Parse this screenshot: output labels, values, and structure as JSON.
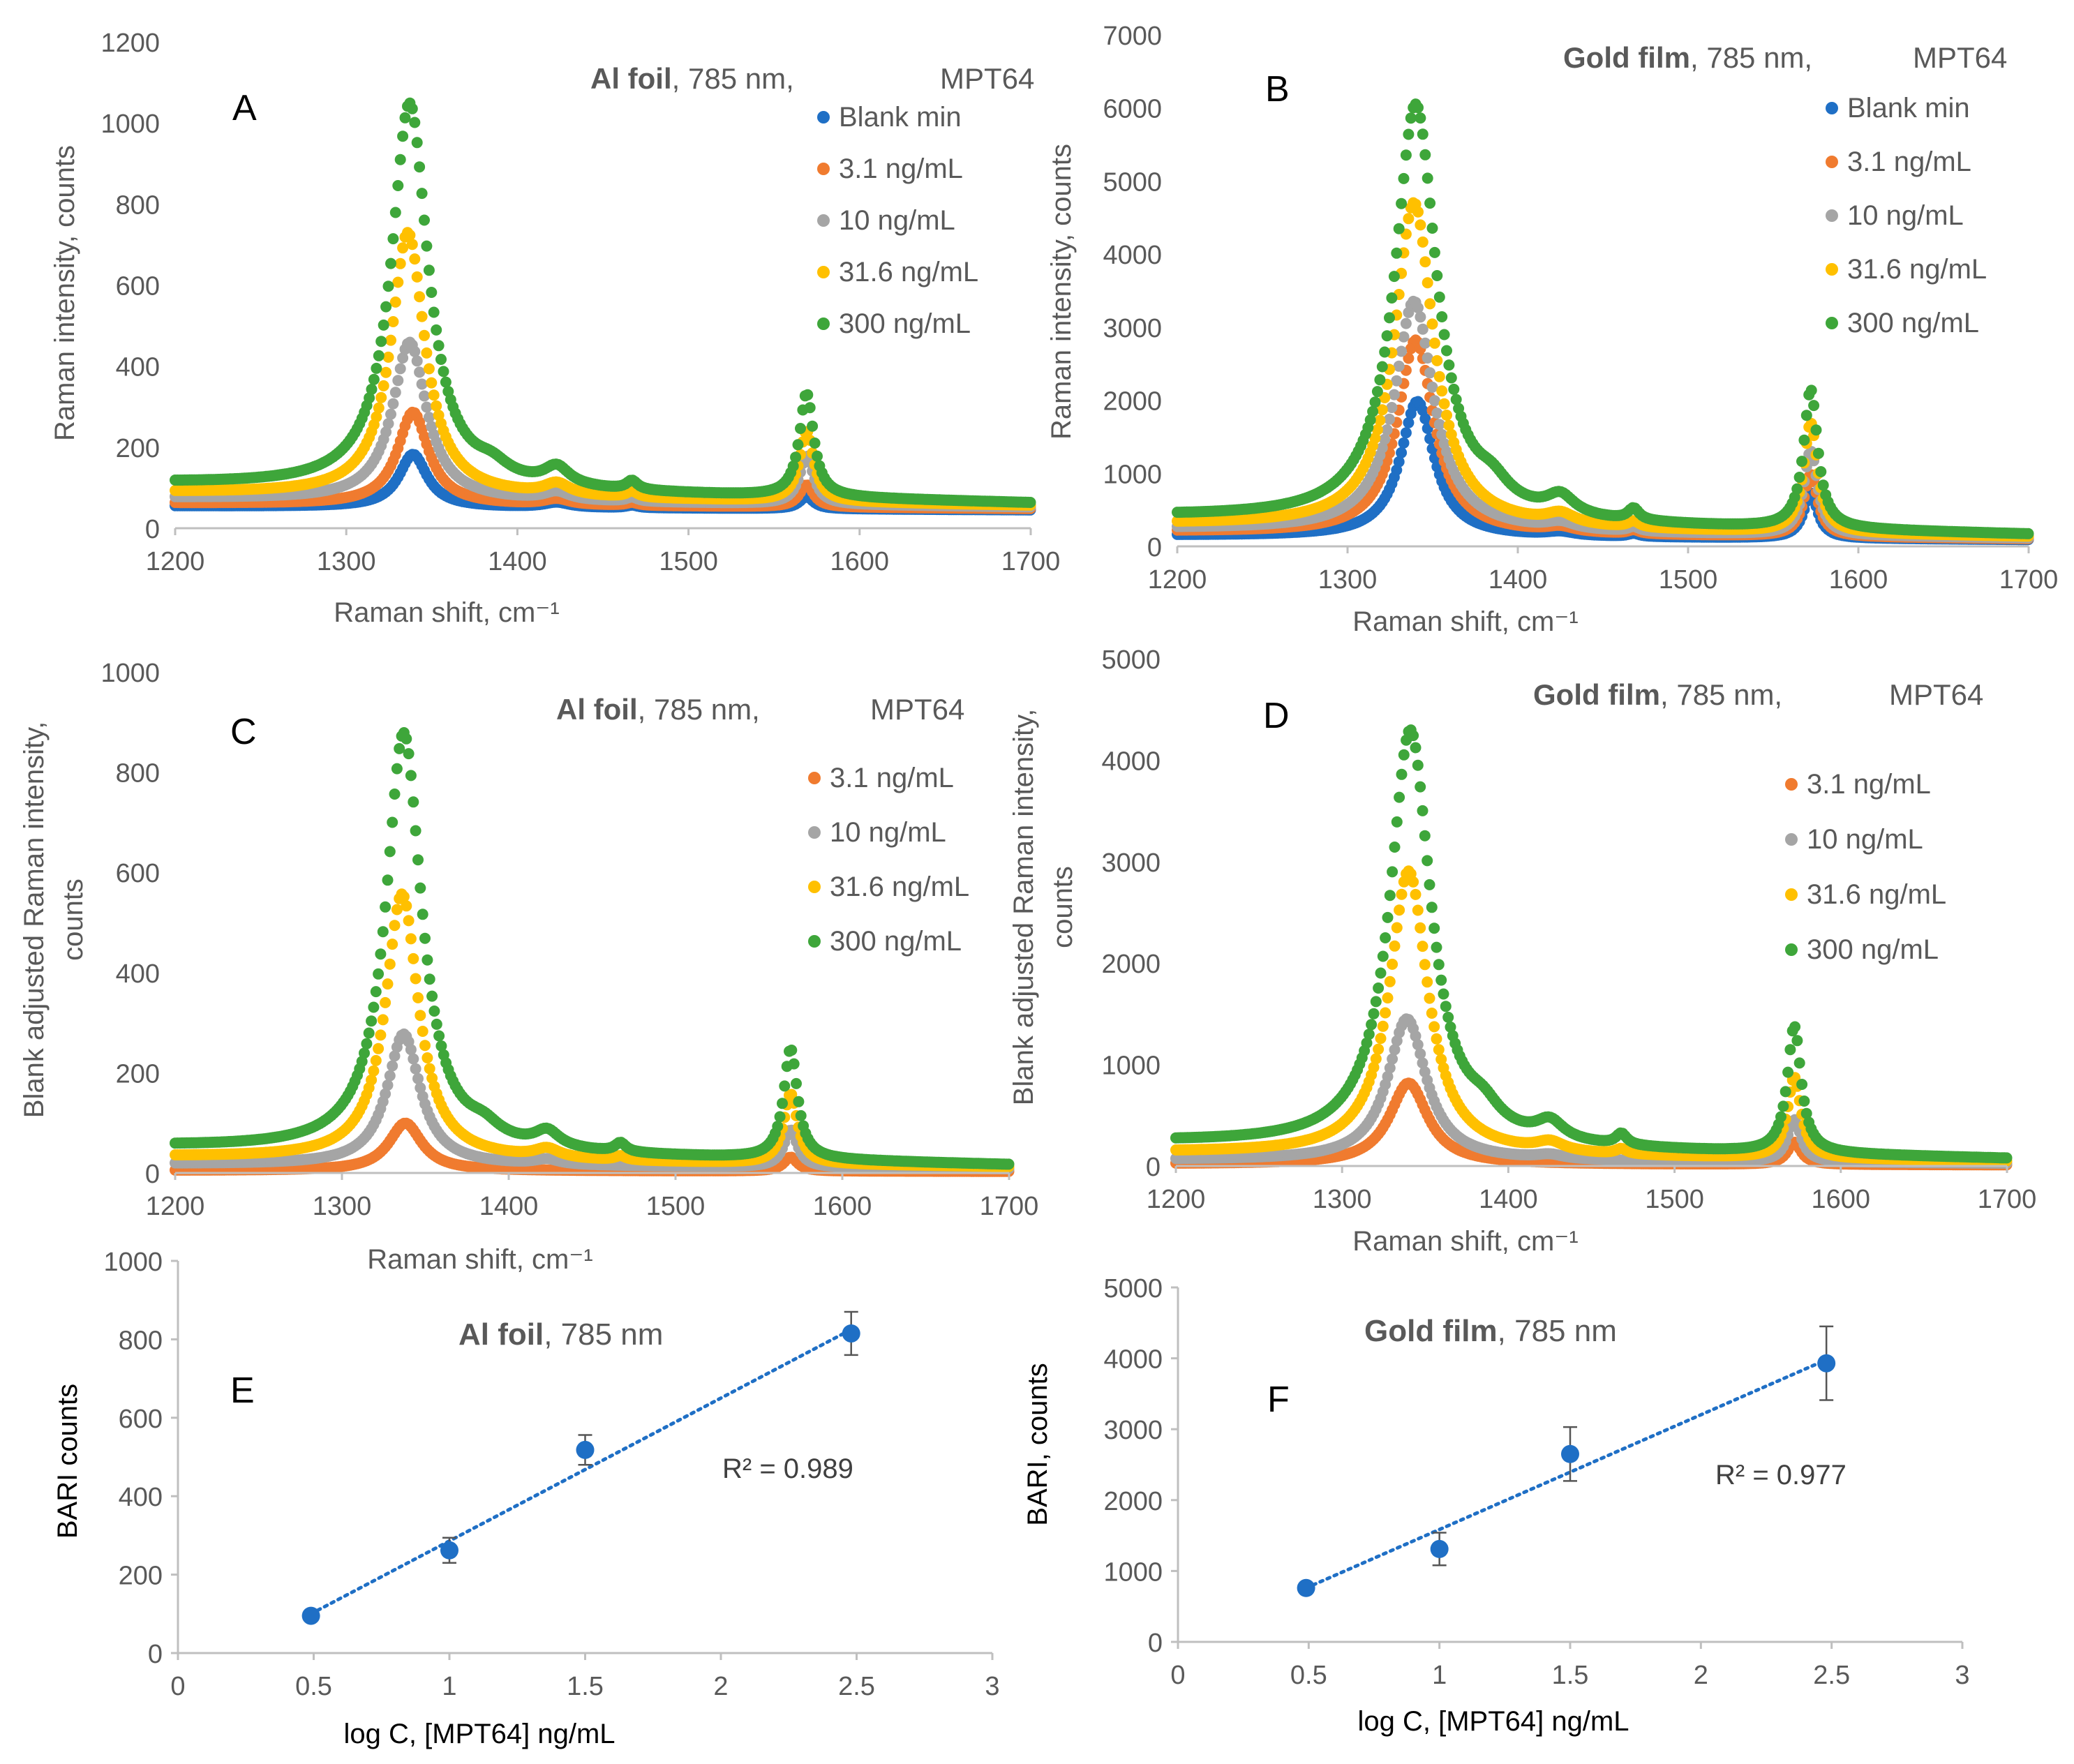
{
  "colors": {
    "blank": "#1f6fc5",
    "c3": "#f07b2f",
    "c10": "#a5a5a5",
    "c31": "#ffc000",
    "c300": "#3ea63a",
    "fit": "#1f6fc5",
    "point": "#1f6fc5",
    "axis": "#bfbfbf",
    "text": "#595959",
    "title": "#595959"
  },
  "chart_data": [
    {
      "id": "A",
      "type": "scatter",
      "panel_label": "A",
      "title_bold": "Al foil",
      "title_rest": ", 785 nm,",
      "title_target": "MPT64",
      "xlabel": "Raman shift, cm⁻¹",
      "ylabel": "Raman intensity, counts",
      "xlim": [
        1200,
        1700
      ],
      "ylim": [
        0,
        1200
      ],
      "xticks": [
        "1200",
        "1300",
        "1400",
        "1500",
        "1600",
        "1700"
      ],
      "yticks": [
        "0",
        "200",
        "400",
        "600",
        "800",
        "1000",
        "1200"
      ],
      "legend_position": "top-right",
      "series": [
        {
          "name": "Blank min",
          "color_key": "blank",
          "base_left": 55,
          "base_right": 45,
          "peaks": [
            [
              1339,
              130,
              10
            ],
            [
              1423,
              12,
              9
            ],
            [
              1467,
              6,
              4
            ],
            [
              1569,
              30,
              5
            ]
          ]
        },
        {
          "name": "3.1 ng/mL",
          "color_key": "c3",
          "base_left": 62,
          "base_right": 48,
          "peaks": [
            [
              1339,
              228,
              11
            ],
            [
              1423,
              14,
              9
            ],
            [
              1467,
              7,
              4
            ],
            [
              1569,
              55,
              5
            ]
          ]
        },
        {
          "name": "10 ng/mL",
          "color_key": "c10",
          "base_left": 75,
          "base_right": 52,
          "peaks": [
            [
              1337,
              390,
              12
            ],
            [
              1423,
              20,
              9
            ],
            [
              1467,
              10,
              4
            ],
            [
              1569,
              120,
              5
            ]
          ]
        },
        {
          "name": "31.6 ng/mL",
          "color_key": "c31",
          "base_left": 88,
          "base_right": 56,
          "peaks": [
            [
              1336,
              650,
              12
            ],
            [
              1423,
              28,
              9
            ],
            [
              1467,
              14,
              4
            ],
            [
              1569,
              175,
              5
            ]
          ]
        },
        {
          "name": "300 ng/mL",
          "color_key": "c300",
          "base_left": 110,
          "base_right": 62,
          "peaks": [
            [
              1337,
              950,
              13
            ],
            [
              1423,
              45,
              9
            ],
            [
              1467,
              22,
              4
            ],
            [
              1569,
              255,
              5
            ],
            [
              1385,
              30,
              12
            ]
          ]
        }
      ]
    },
    {
      "id": "B",
      "type": "scatter",
      "panel_label": "B",
      "title_bold": "Gold film",
      "title_rest": ", 785 nm,",
      "title_target": "MPT64",
      "xlabel": "Raman shift, cm⁻¹",
      "ylabel": "Raman intensity, counts",
      "xlim": [
        1200,
        1700
      ],
      "ylim": [
        0,
        7000
      ],
      "xticks": [
        "1200",
        "1300",
        "1400",
        "1500",
        "1600",
        "1700"
      ],
      "yticks": [
        "0",
        "1000",
        "2000",
        "3000",
        "4000",
        "5000",
        "6000",
        "7000"
      ],
      "legend_position": "top-right",
      "series": [
        {
          "name": "Blank min",
          "color_key": "blank",
          "base_left": 150,
          "base_right": 90,
          "peaks": [
            [
              1341,
              1850,
              12
            ],
            [
              1425,
              50,
              10
            ],
            [
              1468,
              40,
              4
            ],
            [
              1572,
              620,
              5
            ]
          ]
        },
        {
          "name": "3.1 ng/mL",
          "color_key": "c3",
          "base_left": 200,
          "base_right": 100,
          "peaks": [
            [
              1340,
              2650,
              13
            ],
            [
              1425,
              70,
              10
            ],
            [
              1468,
              50,
              4
            ],
            [
              1572,
              850,
              5
            ]
          ]
        },
        {
          "name": "10 ng/mL",
          "color_key": "c10",
          "base_left": 240,
          "base_right": 110,
          "peaks": [
            [
              1339,
              3150,
              14
            ],
            [
              1425,
              90,
              10
            ],
            [
              1468,
              60,
              4
            ],
            [
              1572,
              1150,
              5
            ]
          ]
        },
        {
          "name": "31.6 ng/mL",
          "color_key": "c31",
          "base_left": 300,
          "base_right": 130,
          "peaks": [
            [
              1339,
              4450,
              14
            ],
            [
              1425,
              140,
              10
            ],
            [
              1468,
              80,
              4
            ],
            [
              1572,
              1500,
              5
            ]
          ]
        },
        {
          "name": "300 ng/mL",
          "color_key": "c300",
          "base_left": 400,
          "base_right": 160,
          "peaks": [
            [
              1340,
              5700,
              15
            ],
            [
              1425,
              260,
              10
            ],
            [
              1468,
              160,
              4
            ],
            [
              1572,
              1900,
              5
            ],
            [
              1385,
              250,
              12
            ]
          ]
        }
      ]
    },
    {
      "id": "C",
      "type": "scatter",
      "panel_label": "C",
      "title_bold": "Al foil",
      "title_rest": ", 785 nm,",
      "title_target": "MPT64",
      "xlabel": "Raman shift, cm⁻¹",
      "ylabel_line1": "Blank adjusted Raman intensity,",
      "ylabel_line2": "counts",
      "xlim": [
        1200,
        1700
      ],
      "ylim": [
        0,
        1000
      ],
      "xticks": [
        "1200",
        "1300",
        "1400",
        "1500",
        "1600",
        "1700"
      ],
      "yticks": [
        "0",
        "200",
        "400",
        "600",
        "800",
        "1000"
      ],
      "legend_position": "top-right",
      "series": [
        {
          "name": "3.1 ng/mL",
          "color_key": "c3",
          "base_left": 5,
          "base_right": 3,
          "peaks": [
            [
              1338,
              95,
              12
            ],
            [
              1569,
              28,
              5
            ]
          ]
        },
        {
          "name": "10 ng/mL",
          "color_key": "c10",
          "base_left": 18,
          "base_right": 8,
          "peaks": [
            [
              1337,
              262,
              12
            ],
            [
              1423,
              10,
              9
            ],
            [
              1569,
              75,
              5
            ]
          ]
        },
        {
          "name": "31.6 ng/mL",
          "color_key": "c31",
          "base_left": 32,
          "base_right": 12,
          "peaks": [
            [
              1336,
              530,
              12
            ],
            [
              1423,
              18,
              9
            ],
            [
              1467,
              8,
              4
            ],
            [
              1569,
              140,
              5
            ]
          ]
        },
        {
          "name": "300 ng/mL",
          "color_key": "c300",
          "base_left": 52,
          "base_right": 16,
          "peaks": [
            [
              1337,
              835,
              13
            ],
            [
              1423,
              32,
              9
            ],
            [
              1467,
              18,
              4
            ],
            [
              1569,
              220,
              5
            ],
            [
              1385,
              25,
              12
            ]
          ]
        }
      ]
    },
    {
      "id": "D",
      "type": "scatter",
      "panel_label": "D",
      "title_bold": "Gold film",
      "title_rest": ", 785 nm,",
      "title_target": "MPT64",
      "xlabel": "Raman shift, cm⁻¹",
      "ylabel_line1": "Blank adjusted Raman intensity,",
      "ylabel_line2": "counts",
      "xlim": [
        1200,
        1700
      ],
      "ylim": [
        0,
        5000
      ],
      "xticks": [
        "1200",
        "1300",
        "1400",
        "1500",
        "1600",
        "1700"
      ],
      "yticks": [
        "0",
        "1000",
        "2000",
        "3000",
        "4000",
        "5000"
      ],
      "legend_position": "top-right",
      "series": [
        {
          "name": "3.1 ng/mL",
          "color_key": "c3",
          "base_left": 20,
          "base_right": 10,
          "peaks": [
            [
              1340,
              800,
              14
            ],
            [
              1572,
              220,
              5
            ]
          ]
        },
        {
          "name": "10 ng/mL",
          "color_key": "c10",
          "base_left": 60,
          "base_right": 25,
          "peaks": [
            [
              1339,
              1400,
              14
            ],
            [
              1425,
              40,
              10
            ],
            [
              1572,
              420,
              5
            ]
          ]
        },
        {
          "name": "31.6 ng/mL",
          "color_key": "c31",
          "base_left": 130,
          "base_right": 45,
          "peaks": [
            [
              1340,
              2800,
              14
            ],
            [
              1425,
              90,
              10
            ],
            [
              1468,
              50,
              4
            ],
            [
              1572,
              800,
              5
            ]
          ]
        },
        {
          "name": "300 ng/mL",
          "color_key": "c300",
          "base_left": 230,
          "base_right": 70,
          "peaks": [
            [
              1341,
              4100,
              15
            ],
            [
              1425,
              180,
              10
            ],
            [
              1468,
              110,
              4
            ],
            [
              1572,
              1250,
              5
            ],
            [
              1385,
              180,
              12
            ]
          ]
        }
      ]
    },
    {
      "id": "E",
      "type": "scatter",
      "panel_label": "E",
      "title_bold": "Al foil",
      "title_rest": ", 785 nm",
      "xlabel": "log C, [MPT64] ng/mL",
      "ylabel": "BARI counts",
      "xlim": [
        0,
        3
      ],
      "ylim": [
        0,
        1000
      ],
      "xticks": [
        "0",
        "0.5",
        "1",
        "1.5",
        "2",
        "2.5",
        "3"
      ],
      "yticks": [
        "0",
        "200",
        "400",
        "600",
        "800",
        "1000"
      ],
      "x": [
        0.49,
        1.0,
        1.5,
        2.48
      ],
      "y": [
        95,
        262,
        518,
        815
      ],
      "err": [
        8,
        32,
        38,
        55
      ],
      "fit": {
        "x0": 0.49,
        "y0": 100,
        "x1": 2.48,
        "y1": 825
      },
      "r2": "R² = 0.989"
    },
    {
      "id": "F",
      "type": "scatter",
      "panel_label": "F",
      "title_bold": "Gold film",
      "title_rest": ", 785 nm",
      "xlabel": "log C, [MPT64] ng/mL",
      "ylabel": "BARI, counts",
      "xlim": [
        0,
        3
      ],
      "ylim": [
        0,
        5000
      ],
      "xticks": [
        "0",
        "0.5",
        "1",
        "1.5",
        "2",
        "2.5",
        "3"
      ],
      "yticks": [
        "0",
        "1000",
        "2000",
        "3000",
        "4000",
        "5000"
      ],
      "x": [
        0.49,
        1.0,
        1.5,
        2.48
      ],
      "y": [
        760,
        1310,
        2650,
        3930
      ],
      "err": [
        40,
        230,
        380,
        520
      ],
      "fit": {
        "x0": 0.49,
        "y0": 760,
        "x1": 2.48,
        "y1": 3980
      },
      "r2": "R² = 0.977"
    }
  ]
}
